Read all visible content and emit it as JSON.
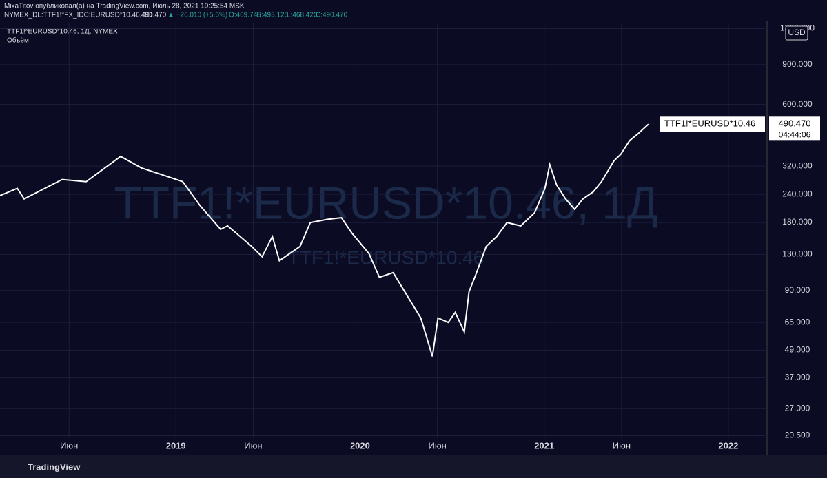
{
  "header": {
    "publisher": "MixaTitov опубликовал(а) на TradingView.com, Июль 28, 2021 19:25:54 MSK",
    "symbol": "NYMEX_DL:TTF1!*FX_IDC:EURUSD*10.46, 1D",
    "last": "490.470",
    "change": "▲ +26.010 (+5.6%)",
    "open": "O:469.745",
    "high": "H:493.125",
    "low": "L:468.420",
    "close": "C:490.470"
  },
  "footer": {
    "brand": "TradingView"
  },
  "chart_data": {
    "type": "line",
    "title": "TTF1!*EURUSD*10.46, 1Д, NYMEX",
    "subtitle": "Объём",
    "watermark": "TTF1!*EURUSD*10.46, 1Д",
    "watermark2": "TTF1!*EURUSD*10.46",
    "currency": "USD",
    "log_scale": true,
    "grid": true,
    "background": "#0c0b24",
    "xlim": [
      2018.045,
      2022.21
    ],
    "ylim": [
      20,
      1370
    ],
    "xticks": [
      {
        "value": 2018.42,
        "label": "Июн"
      },
      2019,
      {
        "value": 2019.42,
        "label": "Июн"
      },
      2020,
      {
        "value": 2020.42,
        "label": "Июн"
      },
      2021,
      {
        "value": 2021.42,
        "label": "Июн"
      },
      2022
    ],
    "yticks": [
      {
        "value": 20.5,
        "label": "20.500"
      },
      {
        "value": 27,
        "label": "27.000"
      },
      {
        "value": 37,
        "label": "37.000"
      },
      {
        "value": 49,
        "label": "49.000"
      },
      {
        "value": 65,
        "label": "65.000"
      },
      {
        "value": 90,
        "label": "90.000"
      },
      {
        "value": 130,
        "label": "130.000"
      },
      {
        "value": 180,
        "label": "180.000"
      },
      {
        "value": 240,
        "label": "240.000"
      },
      {
        "value": 320,
        "label": "320.000"
      },
      {
        "value": 600,
        "label": "600.000"
      },
      {
        "value": 900,
        "label": "900.000"
      },
      {
        "value": 1300,
        "label": "1300.000"
      }
    ],
    "x": [
      2018.045,
      2018.139,
      2018.176,
      2018.288,
      2018.382,
      2018.513,
      2018.7,
      2018.813,
      2018.925,
      2019.037,
      2019.131,
      2019.243,
      2019.281,
      2019.412,
      2019.468,
      2019.524,
      2019.562,
      2019.674,
      2019.73,
      2019.824,
      2019.899,
      2019.955,
      2020.049,
      2020.105,
      2020.18,
      2020.273,
      2020.33,
      2020.393,
      2020.423,
      2020.479,
      2020.517,
      2020.566,
      2020.592,
      2020.629,
      2020.685,
      2020.742,
      2020.798,
      2020.873,
      2020.948,
      2021.004,
      2021.03,
      2021.067,
      2021.116,
      2021.165,
      2021.21,
      2021.266,
      2021.311,
      2021.378,
      2021.416,
      2021.464,
      2021.509,
      2021.566
    ],
    "series": [
      {
        "name": "TTF1!*EURUSD*10.46",
        "color": "#ffffff",
        "values": [
          237,
          255,
          229,
          255,
          279,
          273,
          353,
          314,
          293,
          273,
          214,
          168,
          174,
          141,
          127,
          156,
          122,
          141,
          180,
          186,
          189,
          162,
          131,
          103,
          108,
          81,
          68,
          46,
          68,
          65,
          72,
          59,
          89,
          106,
          141,
          156,
          180,
          174,
          199,
          255,
          325,
          264,
          229,
          206,
          229,
          246,
          273,
          337,
          361,
          415,
          445,
          490.47
        ],
        "value_label": "490.470",
        "countdown": "04:44:06"
      }
    ]
  }
}
